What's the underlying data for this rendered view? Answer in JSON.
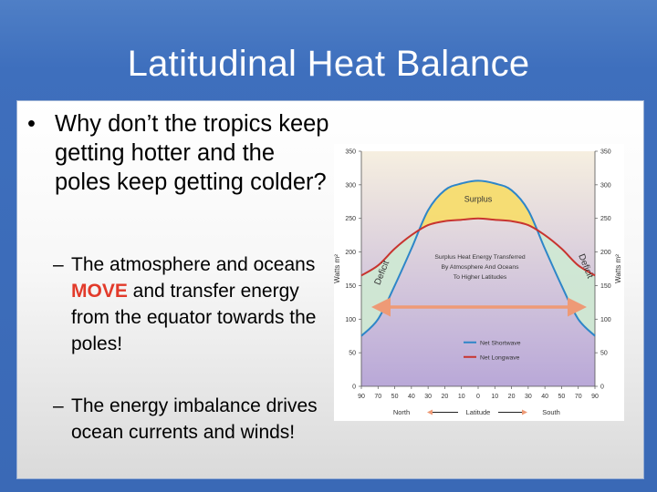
{
  "slide": {
    "title": "Latitudinal Heat Balance",
    "bullet_1": "Why don’t the tropics keep getting hotter and the poles keep getting colder?",
    "sub_bullet_1": {
      "before": "The atmosphere and oceans ",
      "emphasis": "MOVE",
      "after": " and transfer energy from the equator towards the poles!"
    },
    "sub_bullet_2": "The energy imbalance drives ocean currents and winds!",
    "dash": "–",
    "bullet_mark": "•"
  },
  "chart_data": {
    "type": "line",
    "x_ticks": [
      "90",
      "70",
      "50",
      "40",
      "30",
      "20",
      "10",
      "0",
      "10",
      "20",
      "30",
      "40",
      "50",
      "70",
      "90"
    ],
    "y_ticks": [
      0,
      50,
      100,
      150,
      200,
      250,
      300,
      350
    ],
    "ylim": [
      0,
      350
    ],
    "ylabel_left": "Watts m²",
    "ylabel_right": "Watts m²",
    "xlabel": "Latitude",
    "x_north": "North",
    "x_south": "South",
    "series": [
      {
        "name": "Net Shortwave",
        "color": "#2e86c8",
        "values": [
          75,
          100,
          150,
          205,
          262,
          292,
          302,
          306,
          302,
          292,
          262,
          205,
          150,
          100,
          75
        ]
      },
      {
        "name": "Net Longwave",
        "color": "#c8342f",
        "values": [
          165,
          180,
          205,
          225,
          240,
          246,
          248,
          250,
          248,
          246,
          240,
          225,
          205,
          180,
          165
        ]
      }
    ],
    "region_labels": {
      "surplus": "Surplus",
      "deficit_left": "Deficit",
      "deficit_right": "Deficit",
      "transfer_line_1": "Surplus Heat Energy Transferred",
      "transfer_line_2": "By Atmosphere And Oceans",
      "transfer_line_3": "To Higher Latitudes"
    },
    "colors": {
      "surplus_fill": "#f7dc6e",
      "deficit_fill": "#cfe8d3",
      "background_top": "#f6efe0",
      "background_bottom": "#b9a8d8",
      "arrow": "#ee9a76"
    }
  }
}
